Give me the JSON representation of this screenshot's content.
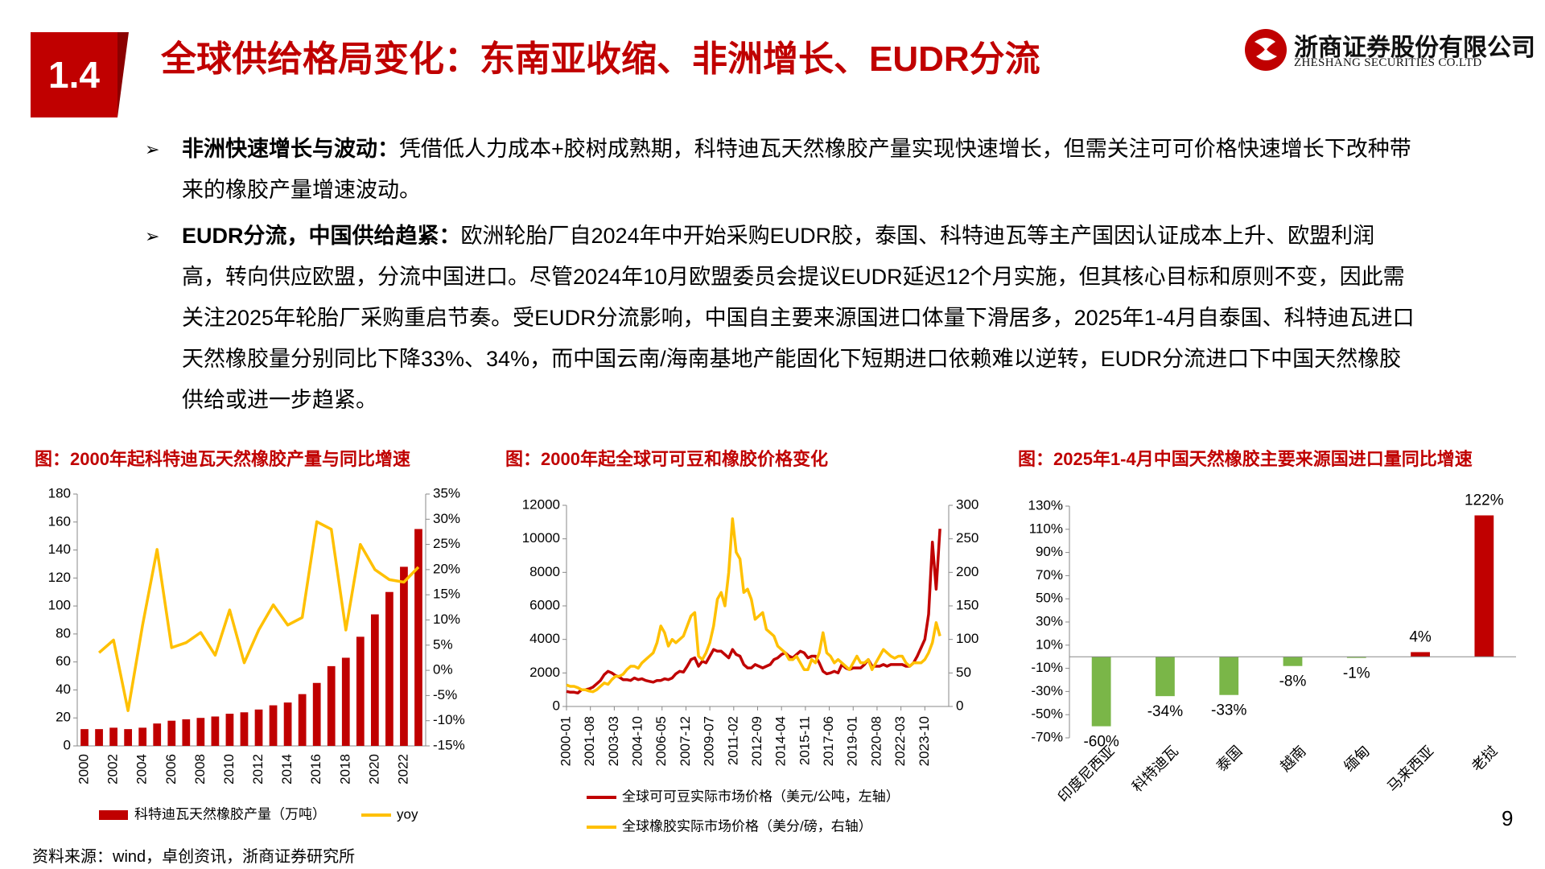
{
  "header": {
    "section": "1.4",
    "title": "全球供给格局变化：东南亚收缩、非洲增长、EUDR分流",
    "logo_cn": "浙商证券股份有限公司",
    "logo_en": "ZHESHANG SECURITIES CO.LTD"
  },
  "bullets": [
    {
      "label": "非洲快速增长与波动：",
      "text": "凭借低人力成本+胶树成熟期，科特迪瓦天然橡胶产量实现快速增长，但需关注可可价格快速增长下改种带来的橡胶产量增速波动。"
    },
    {
      "label": "EUDR分流，中国供给趋紧：",
      "text": "欧洲轮胎厂自2024年中开始采购EUDR胶，泰国、科特迪瓦等主产国因认证成本上升、欧盟利润高，转向供应欧盟，分流中国进口。尽管2024年10月欧盟委员会提议EUDR延迟12个月实施，但其核心目标和原则不变，因此需关注2025年轮胎厂采购重启节奏。受EUDR分流影响，中国自主要来源国进口体量下滑居多，2025年1-4月自泰国、科特迪瓦进口天然橡胶量分别同比下降33%、34%，而中国云南/海南基地产能固化下短期进口依赖难以逆转，EUDR分流进口下中国天然橡胶供给或进一步趋紧。"
    }
  ],
  "chart_data": [
    {
      "type": "bar",
      "title": "图：2000年起科特迪瓦天然橡胶产量与同比增速",
      "categories": [
        "2000",
        null,
        "2002",
        null,
        "2004",
        null,
        "2006",
        null,
        "2008",
        null,
        "2010",
        null,
        "2012",
        null,
        "2014",
        null,
        "2016",
        null,
        "2018",
        null,
        "2020",
        null,
        "2022",
        null
      ],
      "series": [
        {
          "name": "科特迪瓦天然橡胶产量（万吨）",
          "type": "bar",
          "color": "#c00000",
          "values": [
            12,
            12,
            13,
            12,
            13,
            16,
            18,
            19,
            20,
            21,
            23,
            24,
            26,
            29,
            31,
            37,
            45,
            57,
            63,
            78,
            94,
            110,
            128,
            155
          ]
        },
        {
          "name": "yoy",
          "type": "line",
          "axis": "y2",
          "color": "#ffc000",
          "values": [
            null,
            3.5,
            6,
            -8,
            9,
            24,
            4.5,
            5.5,
            7.5,
            3,
            12,
            1.5,
            8,
            13,
            9,
            10.5,
            29.5,
            28,
            8,
            25,
            20,
            18,
            17.5,
            20.5
          ]
        }
      ],
      "ylim": [
        0,
        180
      ],
      "yticks": [
        0,
        20,
        40,
        60,
        80,
        100,
        120,
        140,
        160,
        180
      ],
      "y2lim": [
        -15,
        35
      ],
      "y2ticks": [
        {
          "value": -15,
          "label": "-15%"
        },
        {
          "value": -10,
          "label": "-10%"
        },
        {
          "value": -5,
          "label": "-5%"
        },
        {
          "value": 0,
          "label": "0%"
        },
        {
          "value": 5,
          "label": "5%"
        },
        {
          "value": 10,
          "label": "10%"
        },
        {
          "value": 15,
          "label": "15%"
        },
        {
          "value": 20,
          "label": "20%"
        },
        {
          "value": 25,
          "label": "25%"
        },
        {
          "value": 30,
          "label": "30%"
        },
        {
          "value": 35,
          "label": "35%"
        }
      ],
      "legend": "bottom"
    },
    {
      "type": "line",
      "title": "图：2000年起全球可可豆和橡胶价格变化",
      "x": [
        "2000-01",
        "2000-04",
        "2000-07",
        "2000-10",
        "2001-01",
        "2001-04",
        "2001-07",
        "2001-10",
        "2002-01",
        "2002-04",
        "2002-07",
        "2002-10",
        "2003-01",
        "2003-04",
        "2003-07",
        "2003-10",
        "2004-01",
        "2004-04",
        "2004-07",
        "2004-10",
        "2005-01",
        "2005-04",
        "2005-07",
        "2005-10",
        "2006-01",
        "2006-04",
        "2006-07",
        "2006-10",
        "2007-01",
        "2007-04",
        "2007-07",
        "2007-10",
        "2008-01",
        "2008-04",
        "2008-07",
        "2008-10",
        "2009-01",
        "2009-04",
        "2009-07",
        "2009-10",
        "2010-01",
        "2010-04",
        "2010-07",
        "2010-10",
        "2011-01",
        "2011-04",
        "2011-07",
        "2011-10",
        "2012-01",
        "2012-04",
        "2012-07",
        "2012-10",
        "2013-01",
        "2013-04",
        "2013-07",
        "2013-10",
        "2014-01",
        "2014-04",
        "2014-07",
        "2014-10",
        "2015-01",
        "2015-04",
        "2015-07",
        "2015-10",
        "2016-01",
        "2016-04",
        "2016-07",
        "2016-10",
        "2017-01",
        "2017-04",
        "2017-07",
        "2017-10",
        "2018-01",
        "2018-04",
        "2018-07",
        "2018-10",
        "2019-01",
        "2019-04",
        "2019-07",
        "2019-10",
        "2020-01",
        "2020-04",
        "2020-07",
        "2020-10",
        "2021-01",
        "2021-04",
        "2021-07",
        "2021-10",
        "2022-01",
        "2022-04",
        "2022-07",
        "2022-10",
        "2023-01",
        "2023-04",
        "2023-07",
        "2023-10",
        "2024-01",
        "2024-04",
        "2024-07",
        "2024-10"
      ],
      "series": [
        {
          "name": "全球可可豆实际市场价格（美元/公吨，左轴）",
          "color": "#c00000",
          "values": [
            900,
            850,
            850,
            800,
            1000,
            1000,
            1050,
            1150,
            1350,
            1550,
            1900,
            2100,
            2000,
            1850,
            1750,
            1600,
            1600,
            1550,
            1700,
            1600,
            1650,
            1550,
            1500,
            1450,
            1550,
            1550,
            1650,
            1600,
            1700,
            1950,
            2100,
            2050,
            2400,
            2800,
            2900,
            2400,
            2700,
            2600,
            3000,
            3400,
            3300,
            3300,
            3100,
            2900,
            3400,
            3100,
            3000,
            2500,
            2300,
            2300,
            2500,
            2400,
            2300,
            2400,
            2500,
            2800,
            2900,
            3100,
            3200,
            3000,
            2900,
            3100,
            3300,
            3200,
            2900,
            3000,
            3000,
            2600,
            2100,
            1950,
            2000,
            2100,
            2000,
            2500,
            2300,
            2200,
            2300,
            2300,
            2300,
            2500,
            2800,
            2400,
            2400,
            2400,
            2500,
            2400,
            2500,
            2500,
            2500,
            2500,
            2400,
            2400,
            2600,
            3000,
            3500,
            4000,
            5500,
            9800,
            7000,
            10600
          ]
        },
        {
          "name": "全球橡胶实际市场价格（美分/磅，右轴）",
          "axis": "y2",
          "color": "#ffc000",
          "values": [
            32,
            30,
            30,
            28,
            25,
            25,
            23,
            22,
            25,
            30,
            35,
            33,
            40,
            45,
            45,
            48,
            55,
            60,
            60,
            57,
            65,
            70,
            75,
            80,
            95,
            120,
            110,
            90,
            100,
            95,
            100,
            105,
            120,
            135,
            140,
            75,
            70,
            80,
            95,
            120,
            160,
            170,
            150,
            200,
            280,
            230,
            220,
            170,
            175,
            160,
            130,
            135,
            140,
            115,
            110,
            105,
            90,
            85,
            80,
            70,
            70,
            75,
            65,
            55,
            55,
            70,
            65,
            80,
            110,
            80,
            75,
            65,
            70,
            65,
            60,
            55,
            65,
            75,
            65,
            65,
            70,
            55,
            65,
            75,
            85,
            80,
            75,
            72,
            75,
            75,
            65,
            60,
            65,
            65,
            65,
            70,
            80,
            95,
            125,
            105
          ]
        }
      ],
      "xlim": [
        "2000-01",
        "2025-05"
      ],
      "xticks": [
        "2000-01",
        "2001-08",
        "2003-03",
        "2004-10",
        "2006-05",
        "2007-12",
        "2009-07",
        "2011-02",
        "2012-09",
        "2014-04",
        "2015-11",
        "2017-06",
        "2019-01",
        "2020-08",
        "2022-03",
        "2023-10"
      ],
      "ylim": [
        0,
        12000
      ],
      "yticks": [
        0,
        2000,
        4000,
        6000,
        8000,
        10000,
        12000
      ],
      "y2lim": [
        0,
        300
      ],
      "y2ticks": [
        0,
        50,
        100,
        150,
        200,
        250,
        300
      ],
      "legend": "bottom"
    },
    {
      "type": "bar",
      "title": "图：2025年1-4月中国天然橡胶主要来源国进口量同比增速",
      "categories": [
        "印度尼西亚",
        "科特迪瓦",
        "泰国",
        "越南",
        "缅甸",
        "马来西亚",
        "老挝"
      ],
      "values": [
        -60,
        -34,
        -33,
        -8,
        -1,
        4,
        122
      ],
      "value_labels": [
        "-60%",
        "-34%",
        "-33%",
        "-8%",
        "-1%",
        "4%",
        "122%"
      ],
      "colors": [
        "#7ab648",
        "#7ab648",
        "#7ab648",
        "#7ab648",
        "#7ab648",
        "#c00000",
        "#c00000"
      ],
      "ylim": [
        -70,
        130
      ],
      "yticks": [
        {
          "value": -70,
          "label": "-70%"
        },
        {
          "value": -50,
          "label": "-50%"
        },
        {
          "value": -30,
          "label": "-30%"
        },
        {
          "value": -10,
          "label": "-10%"
        },
        {
          "value": 10,
          "label": "10%"
        },
        {
          "value": 30,
          "label": "30%"
        },
        {
          "value": 50,
          "label": "50%"
        },
        {
          "value": 70,
          "label": "70%"
        },
        {
          "value": 90,
          "label": "90%"
        },
        {
          "value": 110,
          "label": "110%"
        },
        {
          "value": 130,
          "label": "130%"
        }
      ]
    }
  ],
  "source": "资料来源：wind，卓创资讯，浙商证券研究所",
  "page_number": "9"
}
